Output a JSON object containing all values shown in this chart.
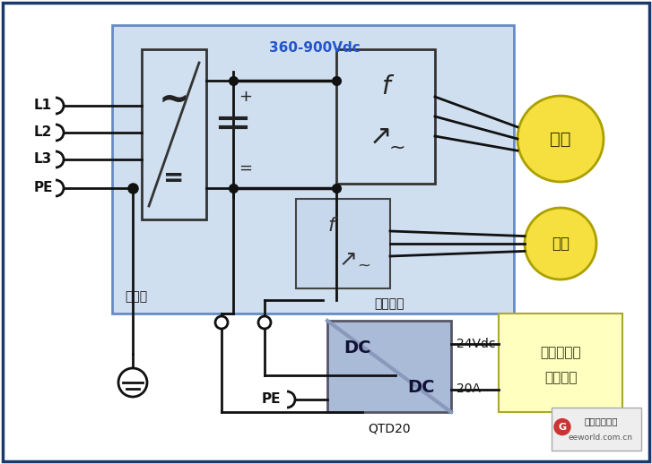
{
  "bg_color": "#ffffff",
  "outer_border_color": "#1a3a6b",
  "vfd_box_color": "#b8cfe8",
  "vfd_box_edge": "#2255aa",
  "rect_box_color": "#d0e0f0",
  "rect_box_edge": "#333333",
  "inv_box_color": "#d0e0f0",
  "inv_box_edge": "#333333",
  "inv2_box_color": "#c8d8ec",
  "inv2_box_edge": "#444444",
  "dc_box_color": "#aabbd8",
  "dc_box_edge": "#555566",
  "load_box_color": "#ffffc0",
  "load_box_edge": "#aaa830",
  "motor_color": "#f5e040",
  "motor_edge": "#aaa000",
  "line_color": "#111111",
  "label_color": "#2255cc",
  "vfd_label": "变频器",
  "dc_label": "360-900Vdc",
  "motor_label": "电机",
  "load_label1": "直流负载，",
  "load_label2": "控制系统",
  "sw_label": "开关电源",
  "qtd_label": "QTD20",
  "v24_label": "24Vdc",
  "v20_label": "20A",
  "pe_label": "PE",
  "L1_label": "L1",
  "L2_label": "L2",
  "L3_label": "L3",
  "PE_label": "PE",
  "eeworld_line1": "电子工程世界",
  "eeworld_line2": "eeworld.com.cn",
  "figsize": [
    7.27,
    5.18
  ],
  "dpi": 100
}
